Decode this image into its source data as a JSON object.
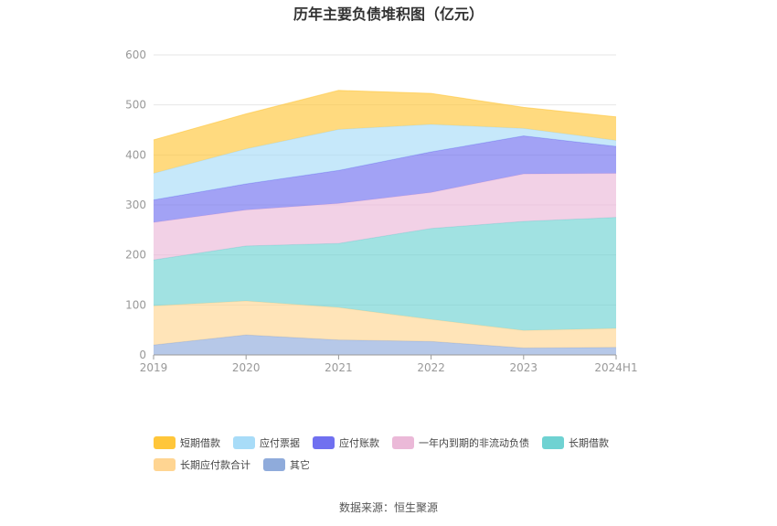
{
  "chart_data": {
    "type": "area",
    "stacked": true,
    "title": "历年主要负债堆积图（亿元）",
    "categories": [
      "2019",
      "2020",
      "2021",
      "2022",
      "2023",
      "2024H1"
    ],
    "yticks": [
      "0",
      "100",
      "200",
      "300",
      "400",
      "500",
      "600"
    ],
    "ylim": [
      0,
      600
    ],
    "grid": true,
    "legend_position": "bottom",
    "series": [
      {
        "name": "其它",
        "color": "#8fabdb",
        "values": [
          20,
          40,
          30,
          27,
          14,
          15
        ]
      },
      {
        "name": "长期应付款合计",
        "color": "#ffd592",
        "values": [
          78,
          68,
          65,
          44,
          35,
          38
        ]
      },
      {
        "name": "长期借款",
        "color": "#6fd2d2",
        "values": [
          92,
          110,
          128,
          182,
          218,
          222
        ]
      },
      {
        "name": "一年内到期的非流动负债",
        "color": "#ebb9d8",
        "values": [
          75,
          72,
          80,
          72,
          95,
          88
        ]
      },
      {
        "name": "应付账款",
        "color": "#7070f0",
        "values": [
          45,
          52,
          66,
          81,
          76,
          54
        ]
      },
      {
        "name": "应付票据",
        "color": "#a8dcf8",
        "values": [
          53,
          70,
          82,
          55,
          15,
          12
        ]
      },
      {
        "name": "短期借款",
        "color": "#ffc63a",
        "values": [
          67,
          70,
          78,
          62,
          42,
          47
        ]
      }
    ],
    "legend_order": [
      "短期借款",
      "应付票据",
      "应付账款",
      "一年内到期的非流动负债",
      "长期借款",
      "长期应付款合计",
      "其它"
    ]
  },
  "source_note": "数据来源：恒生聚源"
}
